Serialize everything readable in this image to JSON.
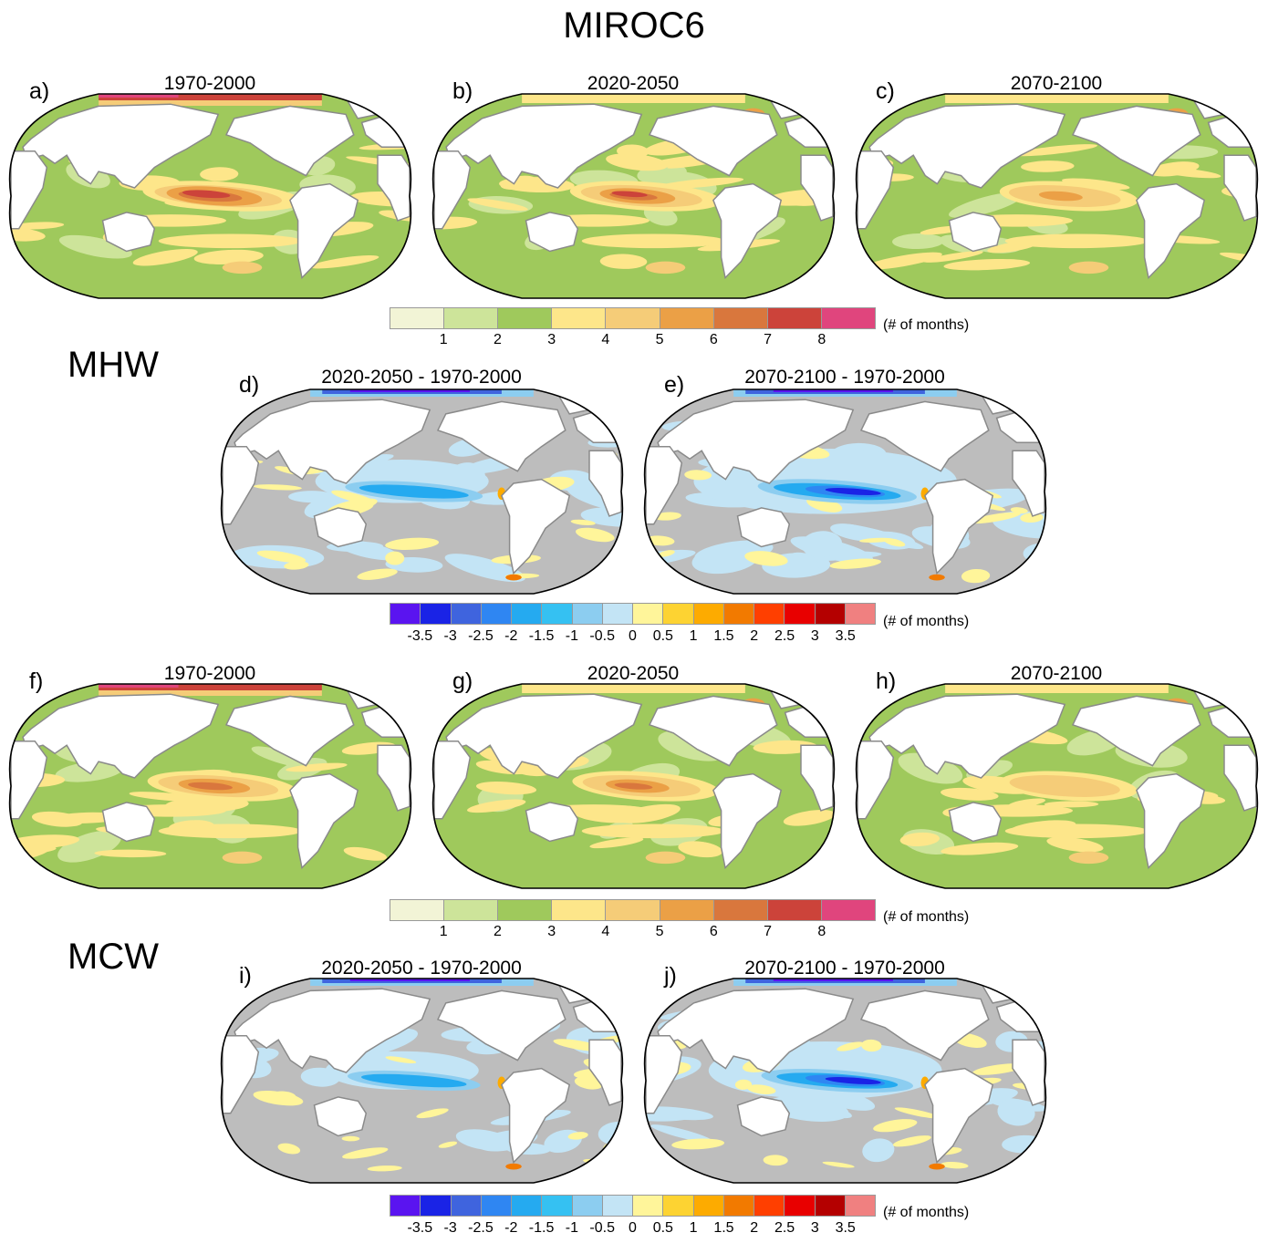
{
  "title": "MIROC6",
  "sections": {
    "mhw": "MHW",
    "mcw": "MCW"
  },
  "panels": [
    {
      "letter": "a)",
      "title": "1970-2000",
      "kind": "absolute",
      "hot": 1.0,
      "arctic": "hot"
    },
    {
      "letter": "b)",
      "title": "2020-2050",
      "kind": "absolute",
      "hot": 0.75,
      "arctic": "none"
    },
    {
      "letter": "c)",
      "title": "2070-2100",
      "kind": "absolute",
      "hot": 0.35,
      "arctic": "none"
    },
    {
      "letter": "d)",
      "title": "2020-2050 - 1970-2000",
      "kind": "difference",
      "cool": 0.55
    },
    {
      "letter": "e)",
      "title": "2070-2100 - 1970-2000",
      "kind": "difference",
      "cool": 1.0
    },
    {
      "letter": "f)",
      "title": "1970-2000",
      "kind": "absolute",
      "hot": 0.7,
      "arctic": "hot"
    },
    {
      "letter": "g)",
      "title": "2020-2050",
      "kind": "absolute",
      "hot": 0.6,
      "arctic": "none"
    },
    {
      "letter": "h)",
      "title": "2070-2100",
      "kind": "absolute",
      "hot": 0.3,
      "arctic": "none"
    },
    {
      "letter": "i)",
      "title": "2020-2050 - 1970-2000",
      "kind": "difference",
      "cool": 0.45
    },
    {
      "letter": "j)",
      "title": "2070-2100 - 1970-2000",
      "kind": "difference",
      "cool": 0.85
    }
  ],
  "colorbar_absolute": {
    "colors": [
      "#f2f4d6",
      "#cde49a",
      "#9fc95c",
      "#fde68a",
      "#f5cc78",
      "#eba046",
      "#d9773d",
      "#cc433a",
      "#e0457d"
    ],
    "ticks": [
      "1",
      "2",
      "3",
      "4",
      "5",
      "6",
      "7",
      "8"
    ],
    "unit": "(# of months)"
  },
  "colorbar_difference": {
    "colors": [
      "#5a14f0",
      "#1a23e6",
      "#3f64de",
      "#2f86f2",
      "#25aaf0",
      "#35c1f2",
      "#8ccdf0",
      "#c3e4f5",
      "#fff59a",
      "#fdd332",
      "#fdab00",
      "#f27a00",
      "#ff3f00",
      "#e80000",
      "#b40000",
      "#f08080"
    ],
    "ticks": [
      "-3.5",
      "-3",
      "-2.5",
      "-2",
      "-1.5",
      "-1",
      "-0.5",
      "0",
      "0.5",
      "1",
      "1.5",
      "2",
      "2.5",
      "3",
      "3.5"
    ],
    "unit": "(# of months)"
  },
  "chart_data": {
    "type": "heatmap",
    "title": "MIROC6",
    "groups": [
      "MHW",
      "MCW"
    ],
    "absolute_panels": {
      "titles": [
        "1970-2000",
        "2020-2050",
        "2070-2100"
      ],
      "levels": [
        1,
        2,
        3,
        4,
        5,
        6,
        7,
        8
      ],
      "unit": "(# of months)"
    },
    "difference_panels": {
      "titles": [
        "2020-2050 - 1970-2000",
        "2070-2100 - 1970-2000"
      ],
      "levels": [
        -3.5,
        -3,
        -2.5,
        -2,
        -1.5,
        -1,
        -0.5,
        0,
        0.5,
        1,
        1.5,
        2,
        2.5,
        3,
        3.5
      ],
      "unit": "(# of months)"
    }
  }
}
